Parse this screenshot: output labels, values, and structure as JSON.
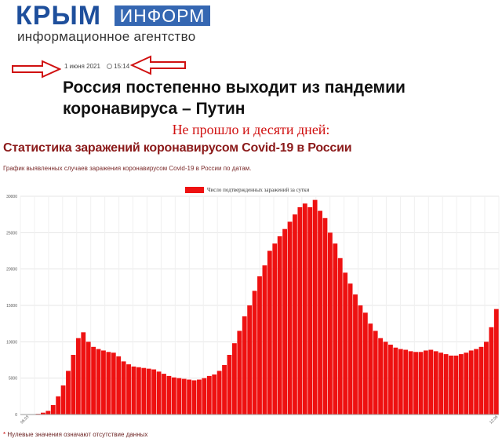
{
  "logo": {
    "main_first": "К",
    "main_rest": "РЫМ",
    "box_text": "ИНФОРМ",
    "subtitle": "информационное агентство"
  },
  "article": {
    "date": "1 июня 2021",
    "time": "15:14",
    "headline": "Россия постепенно выходит из пандемии коронавируса – Путин"
  },
  "annotation": {
    "text": "Не прошло и десяти дней:",
    "color": "#d01010"
  },
  "stats": {
    "title": "Статистика заражений коронавирусом Covid-19 в России",
    "description": "График выявленных случаев заражения коронавирусом Covid-19 в России по датам.",
    "footnote_star": "*",
    "footnote": "Нулевые значения означают отсутствие данных"
  },
  "colors": {
    "bar": "#ee1111",
    "accent_red": "#d01010",
    "brand_blue": "#1e4f9c",
    "arrow": "#d01010"
  },
  "icons": {
    "arrow_left": "left-arrow-icon",
    "arrow_right": "right-arrow-icon"
  },
  "chart_data": {
    "type": "bar",
    "series": [
      {
        "name": "Число подтвержденных заражений за сутки",
        "weekly_values": [
          0,
          20,
          40,
          90,
          250,
          500,
          1300,
          2500,
          4000,
          6000,
          8200,
          10500,
          11300,
          10000,
          9300,
          9000,
          8800,
          8600,
          8500,
          8000,
          7300,
          6900,
          6600,
          6500,
          6400,
          6300,
          6200,
          5900,
          5600,
          5300,
          5100,
          5000,
          4900,
          4800,
          4700,
          4800,
          5000,
          5300,
          5500,
          6000,
          6800,
          8200,
          9800,
          11500,
          13500,
          15000,
          17000,
          19000,
          20500,
          22500,
          23500,
          24500,
          25500,
          26500,
          27500,
          28500,
          29000,
          28500,
          29500,
          28000,
          27000,
          25000,
          23500,
          21500,
          19500,
          18000,
          16500,
          15000,
          14000,
          12500,
          11500,
          10500,
          10000,
          9600,
          9200,
          9000,
          8900,
          8700,
          8600,
          8600,
          8800,
          8900,
          8700,
          8500,
          8300,
          8100,
          8100,
          8300,
          8500,
          8800,
          9000,
          9300,
          10000,
          12000,
          14500
        ]
      }
    ],
    "x_start_label": "06.03",
    "x_end_label": "12.06",
    "ylim": [
      0,
      30000
    ],
    "yticks": [
      0,
      5000,
      10000,
      15000,
      20000,
      25000,
      30000
    ],
    "grid": true,
    "legend_position": "top-center"
  }
}
